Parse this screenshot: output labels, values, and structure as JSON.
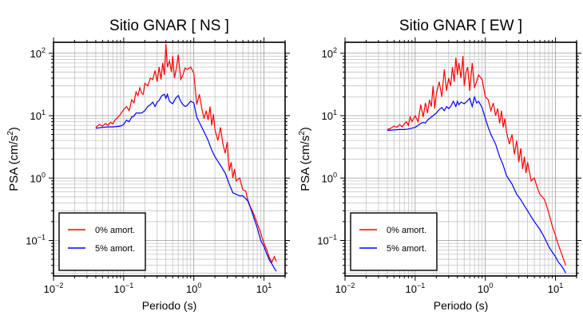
{
  "chart_data": [
    {
      "type": "line",
      "title": "Sitio GNAR [ NS ]",
      "xlabel": "Periodo (s)",
      "ylabel": "PSA (cm/s²)",
      "ylabel_base": "PSA (cm/s",
      "ylabel_sup": "2",
      "ylabel_tail": ")",
      "xscale": "log",
      "yscale": "log",
      "xlim": [
        0.01,
        20
      ],
      "ylim": [
        0.027,
        150
      ],
      "xticks": [
        0.01,
        0.1,
        1,
        10
      ],
      "xtick_labels": [
        {
          "base": "10",
          "exp": "−2"
        },
        {
          "base": "10",
          "exp": "−1"
        },
        {
          "base": "10",
          "exp": "0"
        },
        {
          "base": "10",
          "exp": "1"
        }
      ],
      "yticks": [
        0.1,
        1,
        10,
        100
      ],
      "ytick_labels": [
        {
          "base": "10",
          "exp": "−1"
        },
        {
          "base": "10",
          "exp": "0"
        },
        {
          "base": "10",
          "exp": "1"
        },
        {
          "base": "10",
          "exp": "2"
        }
      ],
      "grid": true,
      "legend_position": "bottom-left",
      "series": [
        {
          "name": "0% amort.",
          "color": "#ff0000",
          "x": [
            0.04,
            0.045,
            0.05,
            0.055,
            0.06,
            0.065,
            0.07,
            0.075,
            0.08,
            0.09,
            0.1,
            0.11,
            0.12,
            0.13,
            0.14,
            0.15,
            0.16,
            0.17,
            0.18,
            0.19,
            0.2,
            0.22,
            0.24,
            0.26,
            0.28,
            0.3,
            0.32,
            0.34,
            0.36,
            0.38,
            0.4,
            0.42,
            0.45,
            0.48,
            0.5,
            0.53,
            0.56,
            0.6,
            0.65,
            0.7,
            0.75,
            0.8,
            0.9,
            1.0,
            1.1,
            1.2,
            1.3,
            1.4,
            1.5,
            1.6,
            1.7,
            1.8,
            1.9,
            2.0,
            2.2,
            2.4,
            2.6,
            2.8,
            3.0,
            3.2,
            3.4,
            3.6,
            3.8,
            4.0,
            4.5,
            5.0,
            5.5,
            6.0,
            7.0,
            8.0,
            9.0,
            10.0,
            11.0,
            12.0,
            13.0,
            14.0,
            15.0
          ],
          "y": [
            6.5,
            7.2,
            6.8,
            7.5,
            7.0,
            7.8,
            7.4,
            8.5,
            9.0,
            10.5,
            12.5,
            14.0,
            12.0,
            18.0,
            16.0,
            24.0,
            21.0,
            28.0,
            23.0,
            22.0,
            33.0,
            30.0,
            40.0,
            38.0,
            53.0,
            35.0,
            60.0,
            38.0,
            70.0,
            45.0,
            140.0,
            60.0,
            75.0,
            50.0,
            90.0,
            40.0,
            55.0,
            95.0,
            38.0,
            45.0,
            58.0,
            55.0,
            60.0,
            48.0,
            15.0,
            22.0,
            13.0,
            9.0,
            12.0,
            8.5,
            14.0,
            7.0,
            10.5,
            6.0,
            4.0,
            6.5,
            3.5,
            2.5,
            3.8,
            1.3,
            1.8,
            1.0,
            1.4,
            0.9,
            1.0,
            0.65,
            0.62,
            0.4,
            0.28,
            0.19,
            0.13,
            0.09,
            0.07,
            0.052,
            0.045,
            0.055,
            0.046
          ]
        },
        {
          "name": "5% amort.",
          "color": "#0000ff",
          "x": [
            0.04,
            0.045,
            0.05,
            0.06,
            0.07,
            0.08,
            0.09,
            0.1,
            0.11,
            0.12,
            0.13,
            0.14,
            0.15,
            0.16,
            0.18,
            0.2,
            0.22,
            0.24,
            0.26,
            0.28,
            0.3,
            0.32,
            0.35,
            0.38,
            0.4,
            0.42,
            0.45,
            0.48,
            0.5,
            0.55,
            0.6,
            0.65,
            0.7,
            0.75,
            0.8,
            0.9,
            1.0,
            1.1,
            1.2,
            1.4,
            1.6,
            1.8,
            2.0,
            2.4,
            2.8,
            3.2,
            3.6,
            4.0,
            4.5,
            5.0,
            6.0,
            7.0,
            8.0,
            9.0,
            10.0,
            11.0,
            12.0,
            13.0,
            14.0,
            15.0
          ],
          "y": [
            6.3,
            6.4,
            6.5,
            6.6,
            6.6,
            6.7,
            6.8,
            7.2,
            8.5,
            8.0,
            9.5,
            9.8,
            11.0,
            11.0,
            11.0,
            12.0,
            14.0,
            15.0,
            16.5,
            14.0,
            16.5,
            17.5,
            21.0,
            22.0,
            19.0,
            22.0,
            17.0,
            16.0,
            15.5,
            19.0,
            21.0,
            17.0,
            15.0,
            14.0,
            14.5,
            17.0,
            16.0,
            9.5,
            7.8,
            5.5,
            4.0,
            2.8,
            2.2,
            1.6,
            1.2,
            0.8,
            0.58,
            0.55,
            0.52,
            0.52,
            0.42,
            0.25,
            0.16,
            0.1,
            0.08,
            0.06,
            0.048,
            0.042,
            0.036,
            0.032
          ]
        }
      ]
    },
    {
      "type": "line",
      "title": "Sitio GNAR [ EW ]",
      "xlabel": "Periodo (s)",
      "ylabel": "PSA (cm/s²)",
      "ylabel_base": "PSA (cm/s",
      "ylabel_sup": "2",
      "ylabel_tail": ")",
      "xscale": "log",
      "yscale": "log",
      "xlim": [
        0.01,
        20
      ],
      "ylim": [
        0.027,
        150
      ],
      "xticks": [
        0.01,
        0.1,
        1,
        10
      ],
      "xtick_labels": [
        {
          "base": "10",
          "exp": "−2"
        },
        {
          "base": "10",
          "exp": "−1"
        },
        {
          "base": "10",
          "exp": "0"
        },
        {
          "base": "10",
          "exp": "1"
        }
      ],
      "yticks": [
        0.1,
        1,
        10,
        100
      ],
      "ytick_labels": [
        {
          "base": "10",
          "exp": "−1"
        },
        {
          "base": "10",
          "exp": "0"
        },
        {
          "base": "10",
          "exp": "1"
        },
        {
          "base": "10",
          "exp": "2"
        }
      ],
      "grid": true,
      "legend_position": "bottom-left",
      "series": [
        {
          "name": "0% amort.",
          "color": "#ff0000",
          "x": [
            0.04,
            0.045,
            0.05,
            0.055,
            0.06,
            0.065,
            0.07,
            0.075,
            0.08,
            0.085,
            0.09,
            0.1,
            0.11,
            0.12,
            0.13,
            0.14,
            0.15,
            0.16,
            0.17,
            0.18,
            0.19,
            0.2,
            0.22,
            0.24,
            0.26,
            0.28,
            0.3,
            0.32,
            0.34,
            0.36,
            0.38,
            0.4,
            0.42,
            0.45,
            0.48,
            0.5,
            0.53,
            0.56,
            0.6,
            0.65,
            0.7,
            0.75,
            0.8,
            0.9,
            1.0,
            1.1,
            1.2,
            1.3,
            1.4,
            1.5,
            1.6,
            1.7,
            1.8,
            1.9,
            2.0,
            2.2,
            2.4,
            2.6,
            2.8,
            3.0,
            3.2,
            3.4,
            3.6,
            3.8,
            4.0,
            4.5,
            5.0,
            5.5,
            6.0,
            7.0,
            8.0,
            9.0,
            10.0,
            11.0,
            12.0,
            13.0,
            14.0
          ],
          "y": [
            6.0,
            6.3,
            6.8,
            6.5,
            7.2,
            6.6,
            7.4,
            8.0,
            7.0,
            9.5,
            8.0,
            10.0,
            8.0,
            15.0,
            9.5,
            16.0,
            11.0,
            18.0,
            14.0,
            30.0,
            13.0,
            22.0,
            35.0,
            20.0,
            55.0,
            25.0,
            40.0,
            30.0,
            60.0,
            35.0,
            85.0,
            45.0,
            70.0,
            40.0,
            90.0,
            30.0,
            50.0,
            60.0,
            25.0,
            70.0,
            28.0,
            35.0,
            45.0,
            38.0,
            20.0,
            18.0,
            12.0,
            16.0,
            10.0,
            13.0,
            7.5,
            12.0,
            6.5,
            9.0,
            5.5,
            3.5,
            5.0,
            2.4,
            4.0,
            1.8,
            3.0,
            1.4,
            2.2,
            1.2,
            1.8,
            0.9,
            1.0,
            0.7,
            0.55,
            0.45,
            0.28,
            0.17,
            0.12,
            0.085,
            0.065,
            0.05,
            0.04
          ]
        },
        {
          "name": "5% amort.",
          "color": "#0000ff",
          "x": [
            0.04,
            0.05,
            0.06,
            0.07,
            0.08,
            0.09,
            0.1,
            0.11,
            0.12,
            0.13,
            0.14,
            0.15,
            0.16,
            0.18,
            0.2,
            0.22,
            0.24,
            0.26,
            0.28,
            0.3,
            0.32,
            0.35,
            0.38,
            0.4,
            0.42,
            0.45,
            0.5,
            0.55,
            0.6,
            0.65,
            0.7,
            0.75,
            0.8,
            0.9,
            1.0,
            1.1,
            1.2,
            1.4,
            1.6,
            1.8,
            2.0,
            2.4,
            2.8,
            3.2,
            3.6,
            4.0,
            4.5,
            5.0,
            6.0,
            7.0,
            8.0,
            9.0,
            10.0,
            11.0,
            12.0,
            13.0,
            14.0
          ],
          "y": [
            5.8,
            5.9,
            6.0,
            6.0,
            6.1,
            6.3,
            6.5,
            7.0,
            7.5,
            7.8,
            7.6,
            8.5,
            9.0,
            10.0,
            11.0,
            12.5,
            13.5,
            12.0,
            14.0,
            13.0,
            14.0,
            17.0,
            14.0,
            17.0,
            15.0,
            16.5,
            15.5,
            17.0,
            19.0,
            14.0,
            20.0,
            16.0,
            17.0,
            13.5,
            9.0,
            6.5,
            5.0,
            3.5,
            2.2,
            1.6,
            1.1,
            0.8,
            0.55,
            0.45,
            0.36,
            0.3,
            0.24,
            0.2,
            0.15,
            0.11,
            0.08,
            0.065,
            0.055,
            0.045,
            0.04,
            0.035,
            0.03
          ]
        }
      ]
    }
  ]
}
